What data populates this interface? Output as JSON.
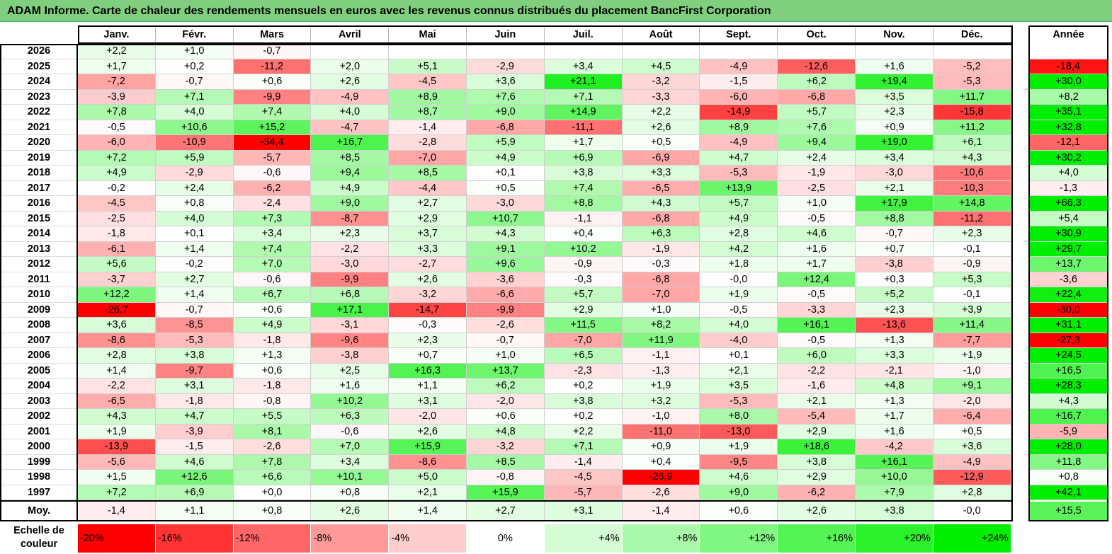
{
  "title": "ADAM Informe. Carte de chaleur des rendements mensuels en euros avec les revenus connus distribués du placement BancFirst Corporation",
  "chart_data": {
    "type": "heatmap",
    "months": [
      "Janv.",
      "Févr.",
      "Mars",
      "Avril",
      "Mai",
      "Juin",
      "Juil.",
      "Août",
      "Sept.",
      "Oct.",
      "Nov.",
      "Déc."
    ],
    "year_header": "Année",
    "rows": [
      {
        "year": "2026",
        "months": [
          "+2,2",
          "+1,0",
          "-0,7",
          "",
          "",
          "",
          "",
          "",
          "",
          "",
          "",
          ""
        ],
        "annual": ""
      },
      {
        "year": "2025",
        "months": [
          "+1,7",
          "+0,2",
          "-11,2",
          "+2,0",
          "+5,1",
          "-2,9",
          "+3,4",
          "+4,5",
          "-4,9",
          "-12,6",
          "+1,6",
          "-5,2"
        ],
        "annual": "-18,4"
      },
      {
        "year": "2024",
        "months": [
          "-7,2",
          "-0,7",
          "+0,6",
          "+2,6",
          "-4,5",
          "+3,6",
          "+21,1",
          "-3,2",
          "-1,5",
          "+6,2",
          "+19,4",
          "-5,3"
        ],
        "annual": "+30,0"
      },
      {
        "year": "2023",
        "months": [
          "-3,9",
          "+7,1",
          "-9,9",
          "-4,9",
          "+8,9",
          "+7,6",
          "+7,1",
          "-3,3",
          "-6,0",
          "-6,8",
          "+3,5",
          "+11,7"
        ],
        "annual": "+8,2"
      },
      {
        "year": "2022",
        "months": [
          "+7,8",
          "+4,0",
          "+7,4",
          "+4,0",
          "+8,7",
          "+9,0",
          "+14,9",
          "+2,2",
          "-14,9",
          "+5,7",
          "+2,3",
          "-15,8"
        ],
        "annual": "+35,1"
      },
      {
        "year": "2021",
        "months": [
          "-0,5",
          "+10,6",
          "+15,2",
          "-4,7",
          "-1,4",
          "-6,8",
          "-11,1",
          "+2,6",
          "+8,9",
          "+7,6",
          "+0,9",
          "+11,2"
        ],
        "annual": "+32,8"
      },
      {
        "year": "2020",
        "months": [
          "-6,0",
          "-10,9",
          "-34,4",
          "+16,7",
          "-2,8",
          "+5,9",
          "+1,7",
          "+0,5",
          "-4,9",
          "+9,4",
          "+19,0",
          "+6,1"
        ],
        "annual": "-12,1"
      },
      {
        "year": "2019",
        "months": [
          "+7,2",
          "+5,9",
          "-5,7",
          "+8,5",
          "-7,0",
          "+4,9",
          "+6,9",
          "-6,9",
          "+4,7",
          "+2,4",
          "+3,4",
          "+4,3"
        ],
        "annual": "+30,2"
      },
      {
        "year": "2018",
        "months": [
          "+4,9",
          "-2,9",
          "-0,6",
          "+9,4",
          "+8,5",
          "+0,1",
          "+3,8",
          "+3,3",
          "-5,3",
          "-1,9",
          "-3,0",
          "-10,6"
        ],
        "annual": "+4,0"
      },
      {
        "year": "2017",
        "months": [
          "-0,2",
          "+2,4",
          "-6,2",
          "+4,9",
          "-4,4",
          "+0,5",
          "+7,4",
          "-6,5",
          "+13,9",
          "-2,5",
          "+2,1",
          "-10,3"
        ],
        "annual": "-1,3"
      },
      {
        "year": "2016",
        "months": [
          "-4,5",
          "+0,8",
          "-2,4",
          "+9,0",
          "+2,7",
          "-3,0",
          "+8,8",
          "+4,3",
          "+5,7",
          "+1,0",
          "+17,9",
          "+14,8"
        ],
        "annual": "+66,3"
      },
      {
        "year": "2015",
        "months": [
          "-2,5",
          "+4,0",
          "+7,3",
          "-8,7",
          "+2,9",
          "+10,7",
          "-1,1",
          "-6,8",
          "+4,9",
          "-0,5",
          "+8,8",
          "-11,2"
        ],
        "annual": "+5,4"
      },
      {
        "year": "2014",
        "months": [
          "-1,8",
          "+0,1",
          "+3,4",
          "+2,3",
          "+3,7",
          "+4,3",
          "+0,4",
          "+6,3",
          "+2,8",
          "+4,6",
          "-0,7",
          "+2,3"
        ],
        "annual": "+30,9"
      },
      {
        "year": "2013",
        "months": [
          "-6,1",
          "+1,4",
          "+7,4",
          "-2,2",
          "+3,3",
          "+9,1",
          "+10,2",
          "-1,9",
          "+4,2",
          "+1,6",
          "+0,7",
          "-0,1"
        ],
        "annual": "+29,7"
      },
      {
        "year": "2012",
        "months": [
          "+5,6",
          "-0,2",
          "+7,0",
          "-3,0",
          "-2,7",
          "+9,6",
          "-0,9",
          "-0,3",
          "+1,8",
          "+1,7",
          "-3,8",
          "-0,9"
        ],
        "annual": "+13,7"
      },
      {
        "year": "2011",
        "months": [
          "-3,7",
          "+2,7",
          "-0,6",
          "-9,9",
          "+2,6",
          "-3,6",
          "-0,3",
          "-6,8",
          "-0,0",
          "+12,4",
          "+0,3",
          "+5,3"
        ],
        "annual": "-3,6"
      },
      {
        "year": "2010",
        "months": [
          "+12,2",
          "+1,4",
          "+6,7",
          "+6,8",
          "-3,2",
          "-6,6",
          "+5,7",
          "-7,0",
          "+1,9",
          "-0,5",
          "+5,2",
          "-0,1"
        ],
        "annual": "+22,4"
      },
      {
        "year": "2009",
        "months": [
          "-26,7",
          "-0,7",
          "+0,6",
          "+17,1",
          "-14,7",
          "-9,9",
          "+2,9",
          "+1,0",
          "-0,5",
          "-3,3",
          "+2,3",
          "+3,9"
        ],
        "annual": "-30,0"
      },
      {
        "year": "2008",
        "months": [
          "+3,6",
          "-8,5",
          "+4,9",
          "-3,1",
          "-0,3",
          "-2,6",
          "+11,5",
          "+8,2",
          "+4,0",
          "+16,1",
          "-13,6",
          "+11,4"
        ],
        "annual": "+31,1"
      },
      {
        "year": "2007",
        "months": [
          "-8,6",
          "-5,3",
          "-1,8",
          "-9,6",
          "+2,3",
          "-0,7",
          "-7,0",
          "+11,9",
          "-4,0",
          "-0,5",
          "+1,3",
          "-7,7"
        ],
        "annual": "-27,3"
      },
      {
        "year": "2006",
        "months": [
          "+2,8",
          "+3,8",
          "+1,3",
          "-3,8",
          "+0,7",
          "+1,0",
          "+6,5",
          "-1,1",
          "+0,1",
          "+6,0",
          "+3,3",
          "+1,9"
        ],
        "annual": "+24,5"
      },
      {
        "year": "2005",
        "months": [
          "+1,4",
          "-9,7",
          "+0,6",
          "+2,5",
          "+16,3",
          "+13,7",
          "-2,3",
          "-1,3",
          "+2,1",
          "-2,2",
          "-2,1",
          "-1,0"
        ],
        "annual": "+16,5"
      },
      {
        "year": "2004",
        "months": [
          "-2,2",
          "+3,1",
          "-1,8",
          "+1,6",
          "+1,1",
          "+6,2",
          "+0,2",
          "+1,9",
          "+3,5",
          "-1,6",
          "+4,8",
          "+9,1"
        ],
        "annual": "+28,3"
      },
      {
        "year": "2003",
        "months": [
          "-6,5",
          "-1,8",
          "-0,8",
          "+10,2",
          "+3,1",
          "-2,0",
          "+3,8",
          "+3,2",
          "-5,3",
          "+2,1",
          "+1,3",
          "-2,0"
        ],
        "annual": "+4,3"
      },
      {
        "year": "2002",
        "months": [
          "+4,3",
          "+4,7",
          "+5,5",
          "+6,3",
          "-2,0",
          "+0,6",
          "+0,2",
          "-1,0",
          "+8,0",
          "-5,4",
          "+1,7",
          "-6,4"
        ],
        "annual": "+16,7"
      },
      {
        "year": "2001",
        "months": [
          "+1,9",
          "-3,9",
          "+8,1",
          "-0,6",
          "+2,6",
          "+4,8",
          "+2,2",
          "-11,0",
          "-13,0",
          "+2,9",
          "+1,6",
          "+0,5"
        ],
        "annual": "-5,9"
      },
      {
        "year": "2000",
        "months": [
          "-13,9",
          "-1,5",
          "-2,6",
          "+7,0",
          "+15,9",
          "-3,2",
          "+7,1",
          "+0,9",
          "+1,9",
          "+18,6",
          "-4,2",
          "+3,6"
        ],
        "annual": "+28,0"
      },
      {
        "year": "1999",
        "months": [
          "-5,6",
          "+4,6",
          "+7,8",
          "+3,4",
          "-8,6",
          "+8,5",
          "-1,4",
          "+0,4",
          "-9,5",
          "+3,8",
          "+16,1",
          "-4,9"
        ],
        "annual": "+11,8"
      },
      {
        "year": "1998",
        "months": [
          "+1,5",
          "+12,6",
          "+6,6",
          "+10,1",
          "+5,0",
          "-0,8",
          "-4,5",
          "-26,9",
          "+4,6",
          "+2,9",
          "+10,0",
          "-12,9"
        ],
        "annual": "+0,8"
      },
      {
        "year": "1997",
        "months": [
          "+7,2",
          "+6,9",
          "+0,0",
          "+0,8",
          "+2,1",
          "+15,9",
          "-5,7",
          "-2,6",
          "+9,0",
          "-6,2",
          "+7,9",
          "+2,8"
        ],
        "annual": "+42,1"
      }
    ],
    "average": {
      "label": "Moy.",
      "months": [
        "-1,4",
        "+1,1",
        "+0,8",
        "+2,6",
        "+1,4",
        "+2,7",
        "+3,1",
        "-1,4",
        "+0,6",
        "+2,6",
        "+3,8",
        "-0,0"
      ],
      "annual": "+15,5"
    },
    "color_scale": {
      "label": "Echelle de couleur",
      "steps": [
        "-20%",
        "-16%",
        "-12%",
        "-8%",
        "-4%",
        "0%",
        "+4%",
        "+8%",
        "+12%",
        "+16%",
        "+20%",
        "+24%"
      ],
      "step_values": [
        -20,
        -16,
        -12,
        -8,
        -4,
        0,
        4,
        8,
        12,
        16,
        20,
        24
      ]
    },
    "colors": {
      "negative_max": "#ff0000",
      "zero": "#ffffff",
      "positive_max": "#00ee00",
      "title_bar": "#7fcf7f"
    }
  }
}
